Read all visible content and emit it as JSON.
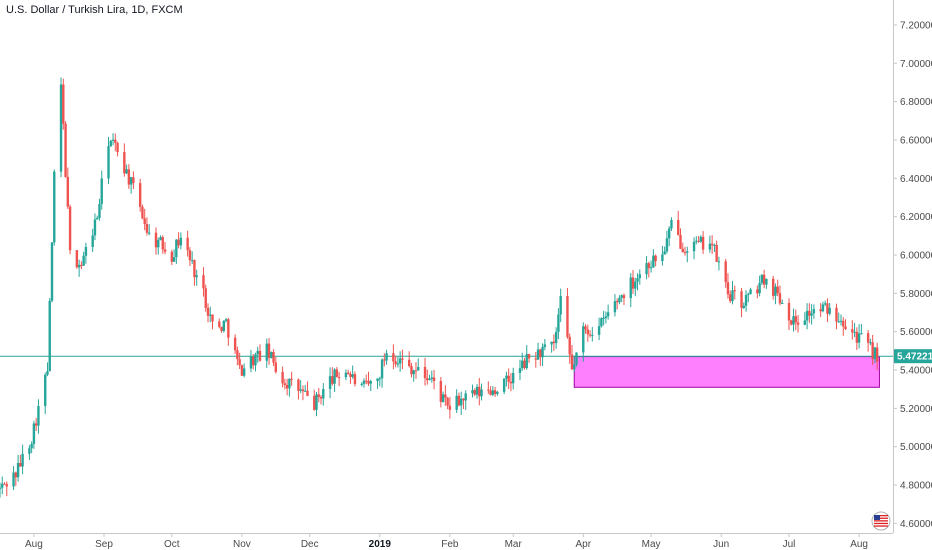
{
  "header": {
    "title": "U.S. Dollar / Turkish Lira, 1D, FXCM"
  },
  "colors": {
    "up": "#26a69a",
    "down": "#ef5350",
    "zone_fill": "#ff80ff",
    "zone_stroke": "#a000a0",
    "price_line": "#26a69a",
    "axis": "#c8c8c8"
  },
  "icons": {
    "corner": "flag-icon"
  },
  "chart_data": {
    "type": "candlestick",
    "title": "U.S. Dollar / Turkish Lira, 1D, FXCM",
    "y_ticks": [
      "4.60000",
      "4.80000",
      "5.00000",
      "5.20000",
      "5.40000",
      "5.60000",
      "5.80000",
      "6.00000",
      "6.20000",
      "6.40000",
      "6.60000",
      "6.80000",
      "7.00000",
      "7.20000"
    ],
    "ylim": [
      4.55,
      7.33
    ],
    "x_labels": [
      {
        "label": "Aug",
        "date": "2018-08-01"
      },
      {
        "label": "Sep",
        "date": "2018-09-01"
      },
      {
        "label": "Oct",
        "date": "2018-10-01"
      },
      {
        "label": "Nov",
        "date": "2018-11-01"
      },
      {
        "label": "Dec",
        "date": "2018-12-01"
      },
      {
        "label": "2019",
        "date": "2019-01-01",
        "bold": true
      },
      {
        "label": "Feb",
        "date": "2019-02-01"
      },
      {
        "label": "Mar",
        "date": "2019-03-01"
      },
      {
        "label": "Apr",
        "date": "2019-04-01"
      },
      {
        "label": "May",
        "date": "2019-05-01"
      },
      {
        "label": "Jun",
        "date": "2019-06-01"
      },
      {
        "label": "Jul",
        "date": "2019-07-01"
      },
      {
        "label": "Aug",
        "date": "2019-08-01"
      }
    ],
    "x_range": [
      "2018-07-17",
      "2019-08-16"
    ],
    "last_price": "5.47221",
    "price_line_value": 5.47221,
    "zone": {
      "date_from": "2019-03-28",
      "date_to": "2019-08-10",
      "price_low": 5.31,
      "price_high": 5.47
    },
    "close_path": [
      [
        "2018-07-17",
        4.78
      ],
      [
        "2018-07-24",
        4.86
      ],
      [
        "2018-07-31",
        5.05
      ],
      [
        "2018-08-07",
        5.4
      ],
      [
        "2018-08-10",
        6.4
      ],
      [
        "2018-08-13",
        6.88
      ],
      [
        "2018-08-17",
        6.0
      ],
      [
        "2018-08-22",
        5.95
      ],
      [
        "2018-08-29",
        6.2
      ],
      [
        "2018-09-03",
        6.6
      ],
      [
        "2018-09-07",
        6.55
      ],
      [
        "2018-09-12",
        6.4
      ],
      [
        "2018-09-17",
        6.25
      ],
      [
        "2018-09-21",
        6.1
      ],
      [
        "2018-09-27",
        6.05
      ],
      [
        "2018-10-01",
        6.0
      ],
      [
        "2018-10-05",
        6.1
      ],
      [
        "2018-10-10",
        5.95
      ],
      [
        "2018-10-15",
        5.8
      ],
      [
        "2018-10-20",
        5.6
      ],
      [
        "2018-10-25",
        5.65
      ],
      [
        "2018-10-31",
        5.4
      ],
      [
        "2018-11-05",
        5.45
      ],
      [
        "2018-11-12",
        5.5
      ],
      [
        "2018-11-19",
        5.35
      ],
      [
        "2018-11-26",
        5.3
      ],
      [
        "2018-12-03",
        5.22
      ],
      [
        "2018-12-10",
        5.35
      ],
      [
        "2018-12-17",
        5.4
      ],
      [
        "2018-12-24",
        5.3
      ],
      [
        "2018-12-31",
        5.35
      ],
      [
        "2019-01-04",
        5.5
      ],
      [
        "2019-01-10",
        5.45
      ],
      [
        "2019-01-17",
        5.4
      ],
      [
        "2019-01-24",
        5.35
      ],
      [
        "2019-01-31",
        5.2
      ],
      [
        "2019-02-07",
        5.25
      ],
      [
        "2019-02-14",
        5.28
      ],
      [
        "2019-02-21",
        5.3
      ],
      [
        "2019-02-28",
        5.35
      ],
      [
        "2019-03-07",
        5.45
      ],
      [
        "2019-03-14",
        5.5
      ],
      [
        "2019-03-19",
        5.52
      ],
      [
        "2019-03-22",
        5.75
      ],
      [
        "2019-03-27",
        5.4
      ],
      [
        "2019-04-01",
        5.6
      ],
      [
        "2019-04-08",
        5.62
      ],
      [
        "2019-04-15",
        5.75
      ],
      [
        "2019-04-22",
        5.85
      ],
      [
        "2019-04-29",
        5.95
      ],
      [
        "2019-05-06",
        6.0
      ],
      [
        "2019-05-10",
        6.15
      ],
      [
        "2019-05-15",
        6.05
      ],
      [
        "2019-05-22",
        6.05
      ],
      [
        "2019-05-27",
        6.08
      ],
      [
        "2019-05-31",
        5.95
      ],
      [
        "2019-06-04",
        5.8
      ],
      [
        "2019-06-10",
        5.75
      ],
      [
        "2019-06-15",
        5.8
      ],
      [
        "2019-06-20",
        5.88
      ],
      [
        "2019-06-26",
        5.8
      ],
      [
        "2019-07-03",
        5.65
      ],
      [
        "2019-07-10",
        5.7
      ],
      [
        "2019-07-17",
        5.72
      ],
      [
        "2019-07-24",
        5.68
      ],
      [
        "2019-07-31",
        5.58
      ],
      [
        "2019-08-05",
        5.52
      ],
      [
        "2019-08-09",
        5.47
      ]
    ]
  }
}
